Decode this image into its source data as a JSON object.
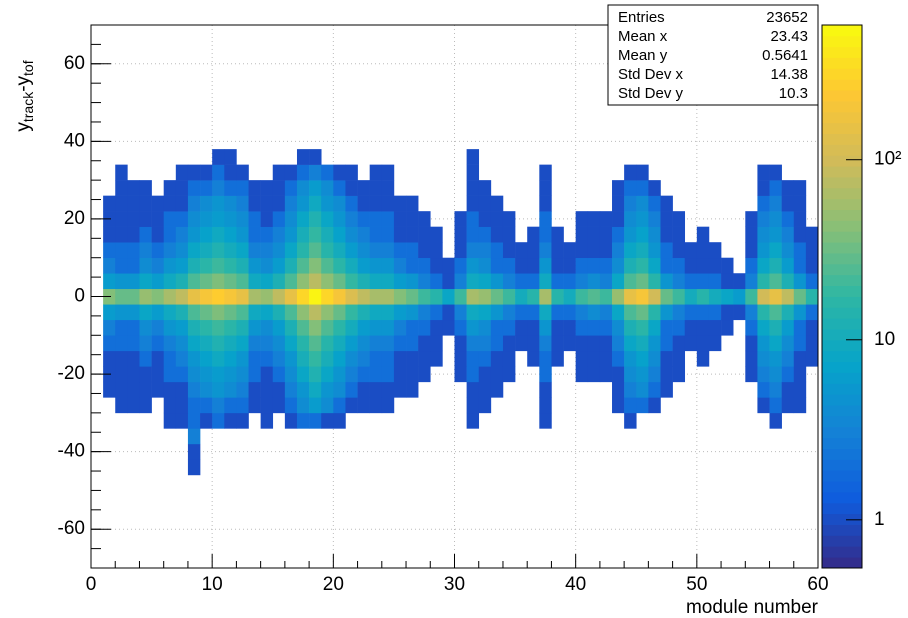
{
  "chart_data": {
    "type": "heatmap2d",
    "xlabel": "module number",
    "ylabel": [
      "y",
      "track",
      "-y",
      "tof"
    ],
    "xlim": [
      0,
      60
    ],
    "ylim": [
      -70,
      70
    ],
    "xticks": [
      0,
      10,
      20,
      30,
      40,
      50,
      60
    ],
    "yticks": [
      -60,
      -40,
      -20,
      0,
      20,
      40,
      60
    ],
    "grid": true,
    "zlim": [
      0.54,
      560
    ],
    "zscale": "log",
    "zticks": [
      1,
      10,
      {
        "value": 100,
        "label": "10²"
      }
    ],
    "colorscale": [
      "#352a87",
      "#0f5cdd",
      "#1481d6",
      "#06a4ca",
      "#2eb7a4",
      "#87bf77",
      "#d1bb59",
      "#fec832",
      "#f9fb0e"
    ],
    "stats": [
      {
        "label": "Entries",
        "value": 23652
      },
      {
        "label": "Mean x",
        "value": 23.43
      },
      {
        "label": "Mean y",
        "value": 0.5641
      },
      {
        "label": "Std Dev x",
        "value": 14.38
      },
      {
        "label": "Std Dev y",
        "value": 10.3
      }
    ],
    "xbins": [
      0,
      1,
      2,
      3,
      4,
      5,
      6,
      7,
      8,
      9,
      10,
      11,
      12,
      13,
      14,
      15,
      16,
      17,
      18,
      19,
      20,
      21,
      22,
      23,
      24,
      25,
      26,
      27,
      28,
      29,
      30,
      31,
      32,
      33,
      34,
      35,
      36,
      37,
      38,
      39,
      40,
      41,
      42,
      43,
      44,
      45,
      46,
      47,
      48,
      49,
      50,
      51,
      52,
      53,
      54,
      55,
      56,
      57,
      58,
      59,
      60
    ],
    "ybins": [
      -46,
      -42,
      -38,
      -34,
      -30,
      -26,
      -22,
      -18,
      -14,
      -10,
      -6,
      -2,
      2,
      6,
      10,
      14,
      18,
      22,
      26,
      30,
      34,
      38
    ],
    "z": [
      [
        0,
        0,
        0,
        0,
        0,
        0,
        0,
        0,
        1,
        0,
        0,
        0,
        0,
        0,
        0,
        0,
        0,
        0,
        0,
        0,
        0,
        0,
        0,
        0,
        0,
        0,
        0,
        0,
        0,
        0,
        0,
        0,
        0,
        0,
        0,
        0,
        0,
        0,
        0,
        0,
        0,
        0,
        0,
        0,
        0,
        0,
        0,
        0,
        0,
        0,
        0,
        0,
        0,
        0,
        0,
        0,
        0,
        0,
        0,
        0
      ],
      [
        0,
        0,
        0,
        0,
        0,
        0,
        0,
        0,
        1,
        0,
        0,
        0,
        0,
        0,
        0,
        0,
        0,
        0,
        0,
        0,
        0,
        0,
        0,
        0,
        0,
        0,
        0,
        0,
        0,
        0,
        0,
        0,
        0,
        0,
        0,
        0,
        0,
        0,
        0,
        0,
        0,
        0,
        0,
        0,
        0,
        0,
        0,
        0,
        0,
        0,
        0,
        0,
        0,
        0,
        0,
        0,
        0,
        0,
        0,
        0
      ],
      [
        0,
        0,
        0,
        0,
        0,
        0,
        0,
        0,
        3,
        0,
        0,
        0,
        0,
        0,
        0,
        0,
        0,
        0,
        0,
        0,
        0,
        0,
        0,
        0,
        0,
        0,
        0,
        0,
        0,
        0,
        0,
        0,
        0,
        0,
        0,
        0,
        0,
        0,
        0,
        0,
        0,
        0,
        0,
        0,
        0,
        0,
        0,
        0,
        0,
        0,
        0,
        0,
        0,
        0,
        0,
        0,
        0,
        0,
        0,
        0
      ],
      [
        0,
        0,
        0,
        0,
        0,
        0,
        1,
        1,
        2,
        1,
        2,
        1,
        1,
        0,
        1,
        0,
        1,
        2,
        2,
        1,
        1,
        0,
        0,
        0,
        0,
        0,
        0,
        0,
        0,
        0,
        0,
        1,
        0,
        0,
        0,
        0,
        0,
        1,
        0,
        0,
        0,
        0,
        0,
        0,
        1,
        0,
        0,
        0,
        0,
        0,
        0,
        0,
        0,
        0,
        0,
        0,
        1,
        0,
        0,
        0
      ],
      [
        0,
        0,
        1,
        1,
        1,
        0,
        1,
        1,
        2,
        2,
        3,
        2,
        2,
        1,
        1,
        1,
        2,
        4,
        6,
        4,
        2,
        1,
        1,
        1,
        1,
        0,
        0,
        0,
        0,
        0,
        0,
        1,
        1,
        0,
        0,
        0,
        0,
        1,
        0,
        0,
        0,
        0,
        0,
        1,
        2,
        2,
        1,
        0,
        0,
        0,
        0,
        0,
        0,
        0,
        0,
        1,
        2,
        1,
        1,
        0
      ],
      [
        0,
        1,
        1,
        1,
        1,
        1,
        1,
        1,
        3,
        4,
        5,
        4,
        3,
        1,
        1,
        1,
        3,
        5,
        9,
        5,
        4,
        2,
        1,
        1,
        1,
        1,
        1,
        0,
        0,
        0,
        0,
        1,
        1,
        1,
        0,
        0,
        0,
        1,
        0,
        0,
        0,
        0,
        0,
        1,
        3,
        4,
        2,
        1,
        0,
        0,
        0,
        0,
        0,
        0,
        0,
        2,
        3,
        1,
        1,
        0
      ],
      [
        0,
        1,
        1,
        1,
        1,
        1,
        2,
        2,
        4,
        5,
        6,
        5,
        4,
        2,
        1,
        2,
        4,
        8,
        13,
        8,
        5,
        3,
        2,
        2,
        2,
        1,
        1,
        1,
        0,
        0,
        1,
        2,
        1,
        1,
        1,
        0,
        0,
        2,
        0,
        0,
        1,
        1,
        1,
        1,
        4,
        5,
        3,
        1,
        1,
        0,
        0,
        0,
        0,
        0,
        1,
        3,
        4,
        2,
        1,
        0
      ],
      [
        0,
        1,
        1,
        1,
        2,
        1,
        2,
        3,
        5,
        7,
        9,
        7,
        5,
        2,
        2,
        3,
        5,
        11,
        18,
        11,
        7,
        4,
        3,
        2,
        2,
        1,
        1,
        1,
        1,
        0,
        1,
        2,
        2,
        1,
        1,
        0,
        1,
        2,
        1,
        0,
        1,
        1,
        1,
        2,
        5,
        7,
        4,
        1,
        1,
        0,
        1,
        0,
        0,
        0,
        1,
        4,
        5,
        3,
        1,
        1
      ],
      [
        0,
        2,
        2,
        2,
        3,
        2,
        3,
        4,
        8,
        10,
        13,
        10,
        8,
        3,
        3,
        4,
        8,
        15,
        25,
        15,
        10,
        6,
        4,
        3,
        3,
        2,
        2,
        1,
        1,
        0,
        1,
        3,
        3,
        2,
        1,
        1,
        1,
        3,
        1,
        1,
        1,
        1,
        1,
        3,
        8,
        10,
        5,
        2,
        1,
        1,
        1,
        1,
        0,
        0,
        1,
        5,
        8,
        4,
        2,
        1
      ],
      [
        0,
        3,
        2,
        2,
        4,
        3,
        5,
        6,
        12,
        16,
        20,
        16,
        12,
        5,
        4,
        6,
        12,
        24,
        40,
        24,
        16,
        10,
        6,
        5,
        5,
        3,
        2,
        2,
        1,
        1,
        2,
        5,
        4,
        2,
        2,
        1,
        1,
        5,
        1,
        1,
        2,
        2,
        2,
        4,
        12,
        16,
        8,
        2,
        2,
        1,
        1,
        1,
        1,
        0,
        2,
        8,
        12,
        6,
        2,
        1
      ],
      [
        0,
        6,
        5,
        5,
        8,
        6,
        9,
        12,
        23,
        30,
        38,
        30,
        23,
        9,
        8,
        12,
        23,
        45,
        75,
        45,
        30,
        18,
        12,
        9,
        9,
        6,
        5,
        3,
        2,
        1,
        3,
        9,
        8,
        5,
        3,
        2,
        2,
        9,
        2,
        2,
        3,
        4,
        3,
        8,
        23,
        30,
        15,
        5,
        3,
        2,
        2,
        2,
        1,
        1,
        3,
        15,
        23,
        12,
        5,
        2
      ],
      [
        0,
        40,
        30,
        30,
        50,
        40,
        60,
        80,
        150,
        200,
        250,
        200,
        150,
        60,
        50,
        80,
        150,
        300,
        500,
        300,
        200,
        120,
        80,
        60,
        60,
        40,
        30,
        20,
        15,
        8,
        20,
        60,
        50,
        30,
        20,
        10,
        15,
        60,
        15,
        10,
        20,
        25,
        20,
        50,
        150,
        200,
        100,
        30,
        20,
        10,
        15,
        10,
        8,
        6,
        20,
        100,
        150,
        80,
        30,
        15
      ],
      [
        0,
        6,
        5,
        5,
        8,
        6,
        9,
        12,
        23,
        30,
        38,
        30,
        23,
        9,
        8,
        12,
        23,
        45,
        75,
        45,
        30,
        18,
        12,
        9,
        9,
        6,
        5,
        3,
        2,
        1,
        3,
        9,
        8,
        5,
        3,
        2,
        2,
        9,
        2,
        2,
        3,
        4,
        3,
        8,
        23,
        30,
        15,
        5,
        3,
        2,
        2,
        2,
        1,
        1,
        3,
        15,
        23,
        12,
        5,
        2
      ],
      [
        0,
        3,
        2,
        2,
        4,
        3,
        5,
        6,
        12,
        16,
        20,
        16,
        12,
        5,
        4,
        6,
        12,
        24,
        40,
        24,
        16,
        10,
        6,
        5,
        5,
        3,
        2,
        2,
        1,
        1,
        2,
        5,
        4,
        2,
        2,
        1,
        1,
        5,
        1,
        1,
        2,
        2,
        2,
        4,
        12,
        16,
        8,
        2,
        2,
        1,
        1,
        1,
        1,
        0,
        2,
        8,
        12,
        6,
        2,
        1
      ],
      [
        0,
        2,
        2,
        2,
        3,
        2,
        3,
        4,
        8,
        10,
        13,
        10,
        8,
        3,
        3,
        4,
        8,
        15,
        25,
        15,
        10,
        6,
        4,
        3,
        3,
        2,
        2,
        1,
        1,
        0,
        1,
        3,
        3,
        2,
        1,
        1,
        1,
        3,
        1,
        1,
        1,
        1,
        1,
        3,
        8,
        10,
        5,
        2,
        1,
        1,
        1,
        1,
        0,
        0,
        1,
        5,
        8,
        4,
        2,
        1
      ],
      [
        0,
        1,
        1,
        1,
        2,
        1,
        2,
        3,
        5,
        7,
        9,
        7,
        5,
        2,
        2,
        3,
        5,
        11,
        18,
        11,
        7,
        4,
        3,
        2,
        2,
        1,
        1,
        1,
        1,
        0,
        1,
        2,
        2,
        1,
        1,
        0,
        1,
        2,
        1,
        0,
        1,
        1,
        1,
        2,
        5,
        7,
        4,
        1,
        1,
        0,
        1,
        0,
        0,
        0,
        1,
        4,
        5,
        3,
        1,
        1
      ],
      [
        0,
        1,
        1,
        1,
        1,
        1,
        2,
        2,
        4,
        5,
        6,
        5,
        4,
        2,
        1,
        2,
        4,
        8,
        13,
        8,
        5,
        3,
        2,
        2,
        2,
        1,
        1,
        1,
        0,
        0,
        1,
        2,
        1,
        1,
        1,
        0,
        0,
        2,
        0,
        0,
        1,
        1,
        1,
        1,
        4,
        5,
        3,
        1,
        1,
        0,
        0,
        0,
        0,
        0,
        1,
        3,
        4,
        2,
        1,
        0
      ],
      [
        0,
        1,
        1,
        1,
        1,
        1,
        1,
        1,
        3,
        4,
        5,
        4,
        3,
        1,
        1,
        1,
        3,
        5,
        9,
        5,
        4,
        2,
        1,
        1,
        1,
        1,
        1,
        0,
        0,
        0,
        0,
        1,
        1,
        1,
        0,
        0,
        0,
        1,
        0,
        0,
        0,
        0,
        0,
        1,
        3,
        4,
        2,
        1,
        0,
        0,
        0,
        0,
        0,
        0,
        0,
        2,
        3,
        1,
        1,
        0
      ],
      [
        0,
        0,
        1,
        1,
        1,
        0,
        1,
        1,
        2,
        2,
        3,
        2,
        2,
        1,
        1,
        1,
        2,
        4,
        6,
        4,
        2,
        1,
        1,
        1,
        1,
        0,
        0,
        0,
        0,
        0,
        0,
        1,
        1,
        0,
        0,
        0,
        0,
        1,
        0,
        0,
        0,
        0,
        0,
        1,
        2,
        2,
        1,
        0,
        0,
        0,
        0,
        0,
        0,
        0,
        0,
        1,
        2,
        1,
        1,
        0
      ],
      [
        0,
        0,
        1,
        0,
        0,
        0,
        0,
        1,
        1,
        1,
        2,
        1,
        1,
        0,
        0,
        1,
        1,
        2,
        3,
        2,
        1,
        1,
        0,
        1,
        1,
        0,
        0,
        0,
        0,
        0,
        0,
        1,
        0,
        0,
        0,
        0,
        0,
        1,
        0,
        0,
        0,
        0,
        0,
        0,
        1,
        1,
        0,
        0,
        0,
        0,
        0,
        0,
        0,
        0,
        0,
        1,
        1,
        0,
        0,
        0
      ],
      [
        0,
        0,
        0,
        0,
        0,
        0,
        0,
        0,
        0,
        0,
        1,
        1,
        0,
        0,
        0,
        0,
        0,
        1,
        1,
        0,
        0,
        0,
        0,
        0,
        0,
        0,
        0,
        0,
        0,
        0,
        0,
        1,
        0,
        0,
        0,
        0,
        0,
        0,
        0,
        0,
        0,
        0,
        0,
        0,
        0,
        0,
        0,
        0,
        0,
        0,
        0,
        0,
        0,
        0,
        0,
        0,
        0,
        0,
        0,
        0
      ]
    ]
  }
}
